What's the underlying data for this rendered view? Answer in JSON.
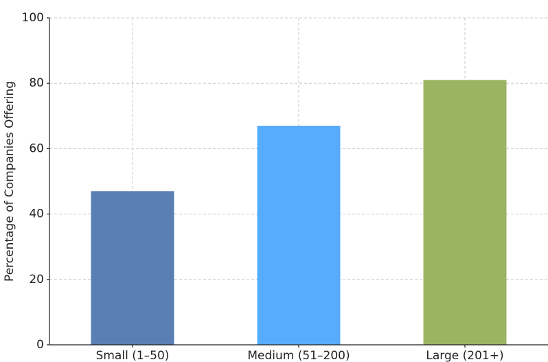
{
  "chart_data": {
    "type": "bar",
    "y_label": "Percentage of Companies Offering",
    "categories": [
      "Small (1–50)",
      "Medium (51–200)",
      "Large (201+)"
    ],
    "values": [
      47,
      67,
      81
    ],
    "colors": [
      "#5a7fb4",
      "#58acff",
      "#9ab461"
    ],
    "ylim": [
      0,
      100
    ],
    "yticks": [
      0,
      20,
      40,
      60,
      80,
      100
    ],
    "grid": true
  }
}
